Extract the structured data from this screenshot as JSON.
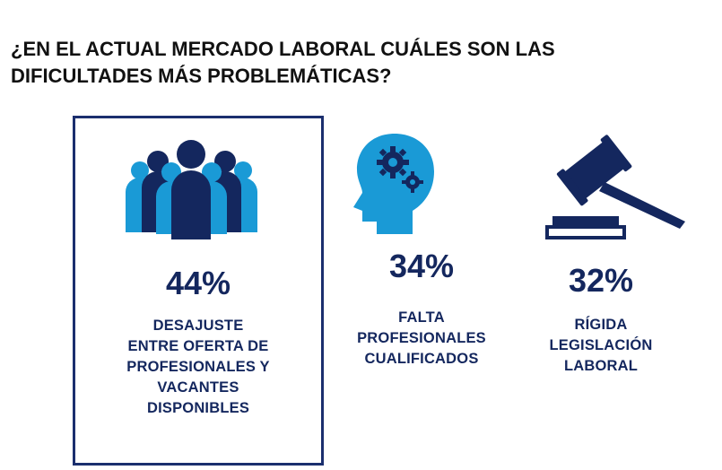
{
  "title": "¿EN EL ACTUAL MERCADO LABORAL CUÁLES SON LAS\nDIFICULTADES MÁS PROBLEMÁTICAS?",
  "colors": {
    "dark_navy": "#14275e",
    "light_blue": "#1a9ad6",
    "frame": "#1b2f6e"
  },
  "chart_data": {
    "type": "table",
    "title": "¿EN EL ACTUAL MERCADO LABORAL CUÁLES SON LAS DIFICULTADES MÁS PROBLEMÁTICAS?",
    "categories": [
      "DESAJUSTE ENTRE OFERTA DE PROFESIONALES Y VACANTES DISPONIBLES",
      "FALTA PROFESIONALES CUALIFICADOS",
      "RÍGIDA LEGISLACIÓN LABORAL"
    ],
    "values": [
      44,
      34,
      32
    ],
    "items": [
      {
        "pct": "44%",
        "label": "DESAJUSTE\nENTRE OFERTA DE\nPROFESIONALES Y\nVACANTES\nDISPONIBLES",
        "icon": "people-group-icon",
        "highlighted": true
      },
      {
        "pct": "34%",
        "label": "FALTA\nPROFESIONALES\nCUALIFICADOS",
        "icon": "head-gears-icon",
        "highlighted": false
      },
      {
        "pct": "32%",
        "label": "RÍGIDA\nLEGISLACIÓN\nLABORAL",
        "icon": "gavel-icon",
        "highlighted": false
      }
    ]
  }
}
